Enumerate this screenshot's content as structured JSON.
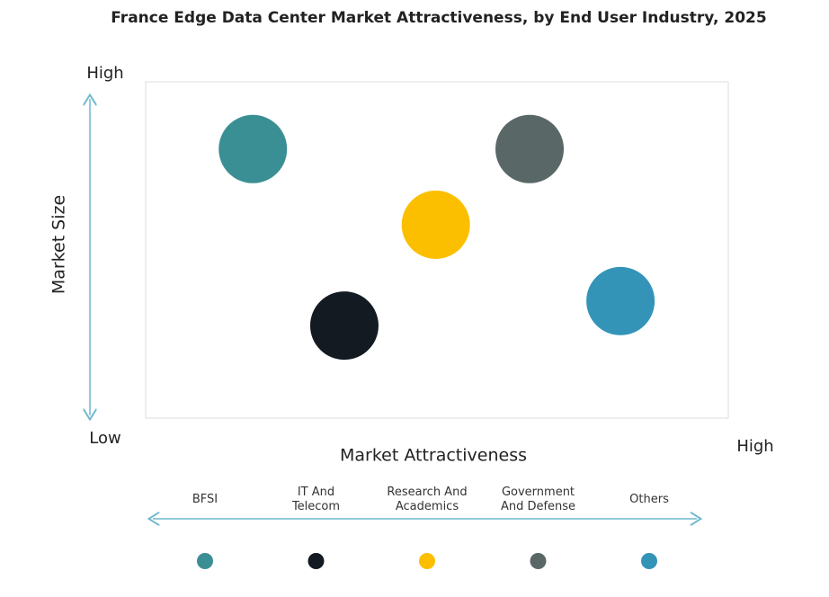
{
  "chart_data": {
    "type": "scatter",
    "title": "France Edge Data Center Market Attractiveness,  by End User Industry, 2025",
    "x_label": "Market Attractiveness",
    "y_label": "Market Size",
    "xlim": [
      0,
      100
    ],
    "ylim": [
      0,
      100
    ],
    "xticks": [
      {
        "value": 100,
        "label": "High"
      }
    ],
    "yticks": [
      {
        "value": 0,
        "label": "Low"
      },
      {
        "value": 100,
        "label": "High"
      }
    ],
    "series": [
      {
        "name": "BFSI",
        "color": "#3a8f94",
        "x": 18.4,
        "y": 80
      },
      {
        "name": "IT And Telecom",
        "color": "#141a22",
        "x": 34.1,
        "y": 27.5
      },
      {
        "name": "Research And Academics",
        "color": "#fbbf00",
        "x": 49.8,
        "y": 57.5
      },
      {
        "name": "Government And Defense",
        "color": "#5a6767",
        "x": 65.9,
        "y": 80
      },
      {
        "name": "Others",
        "color": "#3494b8",
        "x": 81.5,
        "y": 34.8
      }
    ]
  }
}
